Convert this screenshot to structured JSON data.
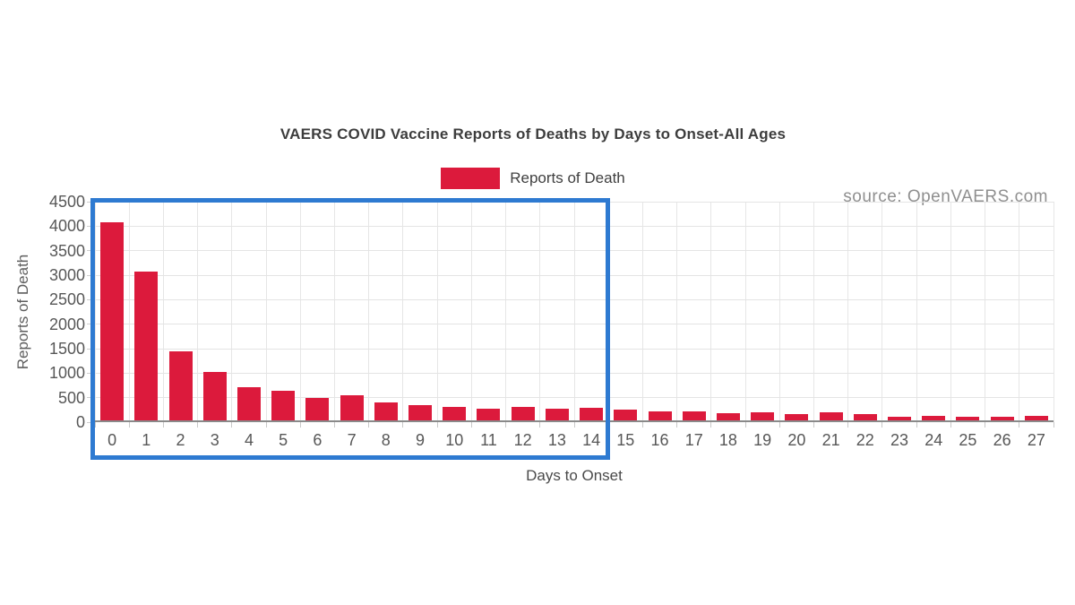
{
  "title": "VAERS COVID Vaccine Reports of Deaths by Days to Onset-All Ages",
  "legend": {
    "label": "Reports of Death",
    "swatch_color": "#dc1a3c"
  },
  "source_text": "source: OpenVAERS.com",
  "axis": {
    "x_title": "Days to Onset",
    "y_title": "Reports of Death"
  },
  "colors": {
    "bar": "#dc1a3c",
    "highlight_box": "#2e7ad1",
    "grid": "#e4e4e4",
    "axis_line": "#8a8a8a",
    "tick_label": "#575757",
    "title_text": "#3d3d3d",
    "source_text": "#8f8f8f",
    "background": "#ffffff"
  },
  "highlight": {
    "from_day": "0",
    "to_day": "14",
    "note": "blue rectangle outlining days 0 through 14"
  },
  "chart_data": {
    "type": "bar",
    "title": "VAERS COVID Vaccine Reports of Deaths by Days to Onset-All Ages",
    "xlabel": "Days to Onset",
    "ylabel": "Reports of Death",
    "legend_entries": [
      "Reports of Death"
    ],
    "legend_position": "top-center",
    "grid": true,
    "ylim": [
      0,
      4500
    ],
    "ytick_step": 500,
    "categories": [
      "0",
      "1",
      "2",
      "3",
      "4",
      "5",
      "6",
      "7",
      "8",
      "9",
      "10",
      "11",
      "12",
      "13",
      "14",
      "15",
      "16",
      "17",
      "18",
      "19",
      "20",
      "21",
      "22",
      "23",
      "24",
      "25",
      "26",
      "27"
    ],
    "values": [
      4080,
      3080,
      1440,
      1030,
      710,
      640,
      500,
      550,
      400,
      350,
      320,
      280,
      315,
      280,
      300,
      250,
      215,
      220,
      180,
      195,
      160,
      200,
      165,
      115,
      130,
      110,
      105,
      135
    ]
  }
}
